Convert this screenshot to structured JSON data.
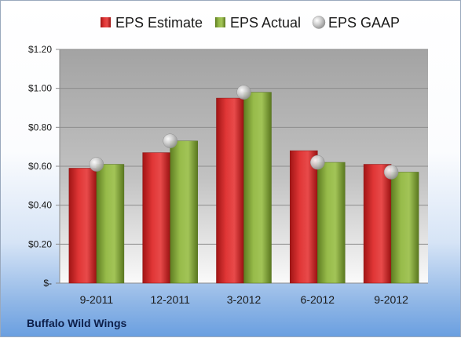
{
  "chart_data": {
    "type": "bar",
    "company": "Buffalo Wild Wings",
    "categories": [
      "9-2011",
      "12-2011",
      "3-2012",
      "6-2012",
      "9-2012"
    ],
    "series": [
      {
        "name": "EPS Estimate",
        "type": "bar",
        "color": "#d42a2a",
        "values": [
          0.59,
          0.67,
          0.95,
          0.68,
          0.61
        ]
      },
      {
        "name": "EPS Actual",
        "type": "bar",
        "color": "#8cb040",
        "values": [
          0.61,
          0.73,
          0.98,
          0.62,
          0.57
        ]
      },
      {
        "name": "EPS GAAP",
        "type": "scatter",
        "color": "#b8b8b8",
        "values": [
          0.61,
          0.73,
          0.98,
          0.62,
          0.57
        ]
      }
    ],
    "yticks": [
      "$-",
      "$0.20",
      "$0.40",
      "$0.60",
      "$0.80",
      "$1.00",
      "$1.20"
    ],
    "ylim": [
      0,
      1.2
    ],
    "grid": true,
    "legend_position": "top"
  }
}
